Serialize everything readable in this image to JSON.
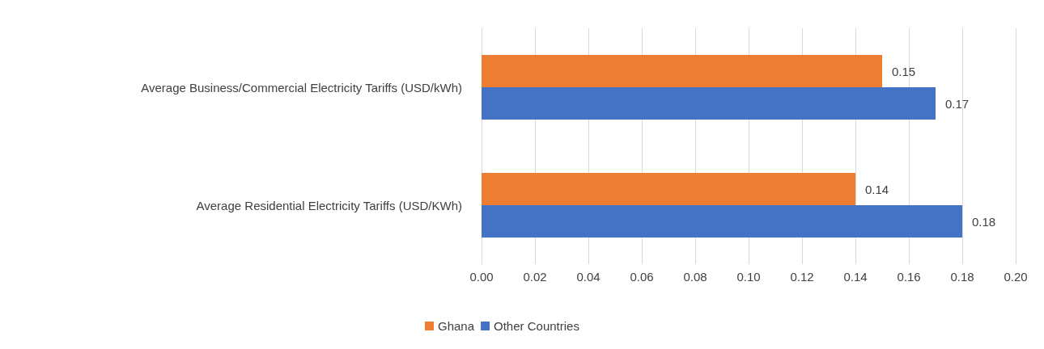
{
  "chart_data": {
    "type": "bar",
    "orientation": "horizontal",
    "categories": [
      "Average Business/Commercial Electricity Tariffs (USD/kWh)",
      "Average Residential Electricity Tariffs (USD/KWh)"
    ],
    "series": [
      {
        "name": "Ghana",
        "color": "#ed7d31",
        "values": [
          0.15,
          0.14
        ]
      },
      {
        "name": "Other Countries",
        "color": "#4472c4",
        "values": [
          0.17,
          0.18
        ]
      }
    ],
    "xlim": [
      0,
      0.2
    ],
    "xticks": [
      {
        "value": 0,
        "label": "0.00"
      },
      {
        "value": 0.02,
        "label": "0.02"
      },
      {
        "value": 0.04,
        "label": "0.04"
      },
      {
        "value": 0.06,
        "label": "0.06"
      },
      {
        "value": 0.08,
        "label": "0.08"
      },
      {
        "value": 0.1,
        "label": "0.10"
      },
      {
        "value": 0.12,
        "label": "0.12"
      },
      {
        "value": 0.14,
        "label": "0.14"
      },
      {
        "value": 0.16,
        "label": "0.16"
      },
      {
        "value": 0.18,
        "label": "0.18"
      },
      {
        "value": 0.2,
        "label": "0.20"
      }
    ],
    "data_labels": true,
    "grid": "x",
    "legend": "bottom"
  }
}
